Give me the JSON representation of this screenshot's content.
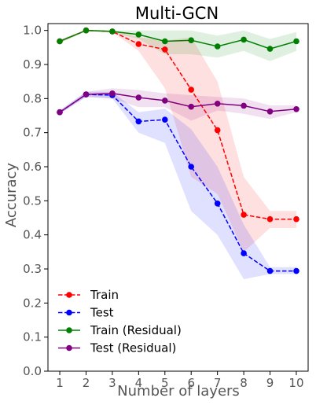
{
  "chart_data": {
    "type": "line",
    "title": "Multi-GCN",
    "xlabel": "Number of layers",
    "ylabel": "Accuracy",
    "x": [
      1,
      2,
      3,
      4,
      5,
      6,
      7,
      8,
      9,
      10
    ],
    "xticks": [
      "1",
      "2",
      "3",
      "4",
      "5",
      "6",
      "7",
      "8",
      "9",
      "10"
    ],
    "yticks": [
      "0.0",
      "0.1",
      "0.2",
      "0.3",
      "0.4",
      "0.5",
      "0.6",
      "0.7",
      "0.8",
      "0.9",
      "1.0"
    ],
    "xlim": [
      0.55,
      10.45
    ],
    "ylim": [
      0.0,
      1.02
    ],
    "grid": false,
    "legend_position": "lower-left",
    "series": [
      {
        "name": "Train",
        "color": "#ff0000",
        "linestyle": "dashed",
        "values": [
          0.968,
          1.0,
          0.997,
          0.96,
          0.944,
          0.826,
          0.707,
          0.459,
          0.446,
          0.446
        ],
        "band_low": [
          0.963,
          0.998,
          0.995,
          0.94,
          0.83,
          0.57,
          0.52,
          0.35,
          0.42,
          0.42
        ],
        "band_high": [
          0.972,
          1.002,
          1.0,
          0.98,
          0.97,
          0.98,
          0.85,
          0.57,
          0.47,
          0.47
        ]
      },
      {
        "name": "Test",
        "color": "#0000ff",
        "linestyle": "dashed",
        "values": [
          0.76,
          0.812,
          0.81,
          0.733,
          0.738,
          0.6,
          0.492,
          0.346,
          0.294,
          0.294
        ],
        "band_low": [
          0.755,
          0.805,
          0.8,
          0.7,
          0.67,
          0.47,
          0.4,
          0.27,
          0.285,
          0.285
        ],
        "band_high": [
          0.765,
          0.82,
          0.82,
          0.76,
          0.77,
          0.71,
          0.6,
          0.43,
          0.305,
          0.305
        ]
      },
      {
        "name": "Train (Residual)",
        "color": "#008000",
        "linestyle": "solid",
        "values": [
          0.968,
          1.0,
          0.997,
          0.988,
          0.968,
          0.971,
          0.953,
          0.973,
          0.946,
          0.968
        ],
        "band_low": [
          0.963,
          0.998,
          0.993,
          0.975,
          0.93,
          0.93,
          0.92,
          0.94,
          0.91,
          0.94
        ],
        "band_high": [
          0.972,
          1.002,
          1.0,
          1.0,
          1.0,
          1.0,
          0.985,
          1.0,
          0.975,
          0.995
        ]
      },
      {
        "name": "Test (Residual)",
        "color": "#800080",
        "linestyle": "solid",
        "values": [
          0.76,
          0.812,
          0.815,
          0.803,
          0.794,
          0.776,
          0.785,
          0.779,
          0.762,
          0.769
        ],
        "band_low": [
          0.755,
          0.805,
          0.8,
          0.775,
          0.775,
          0.735,
          0.765,
          0.755,
          0.74,
          0.76
        ],
        "band_high": [
          0.765,
          0.82,
          0.83,
          0.825,
          0.815,
          0.81,
          0.805,
          0.8,
          0.78,
          0.78
        ]
      }
    ]
  }
}
